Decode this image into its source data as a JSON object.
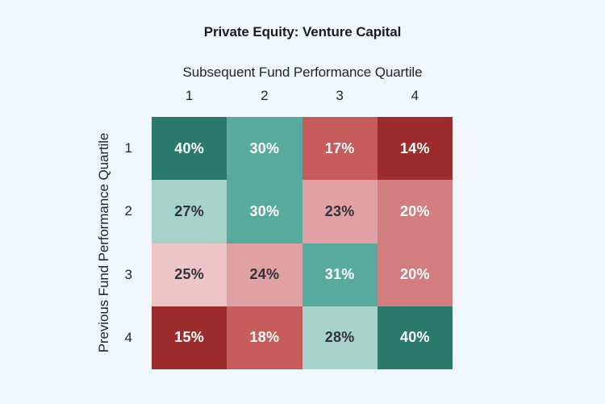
{
  "page": {
    "background_color": "#f0f7fd",
    "title_color": "#1b1b25",
    "label_color": "#23232d"
  },
  "chart_data": {
    "type": "heatmap",
    "title": "Private Equity: Venture Capital",
    "x_axis_label": "Subsequent Fund Performance Quartile",
    "y_axis_label": "Previous Fund Performance Quartile",
    "x_tick_labels": [
      "1",
      "2",
      "3",
      "4"
    ],
    "y_tick_labels": [
      "1",
      "2",
      "3",
      "4"
    ],
    "values_percent": [
      [
        40,
        30,
        17,
        14
      ],
      [
        27,
        30,
        23,
        20
      ],
      [
        25,
        24,
        31,
        20
      ],
      [
        15,
        18,
        28,
        40
      ]
    ],
    "palette": {
      "dark_teal": "#2b7a6b",
      "medium_teal": "#58aa9d",
      "light_teal": "#a6d2ca",
      "pale_pink": "#edc5c7",
      "light_pink": "#dfa1a3",
      "medium_pink": "#d27d7e",
      "medium_red": "#c75c5c",
      "dark_red": "#9d2d2d"
    },
    "cells": [
      [
        {
          "label": "40%",
          "bg": "#2b7a6b",
          "text": "#ffffff"
        },
        {
          "label": "30%",
          "bg": "#58aa9d",
          "text": "#ffffff"
        },
        {
          "label": "17%",
          "bg": "#c75c5c",
          "text": "#ffffff"
        },
        {
          "label": "14%",
          "bg": "#9d2d2d",
          "text": "#ffffff"
        }
      ],
      [
        {
          "label": "27%",
          "bg": "#a6d2ca",
          "text": "#32323c"
        },
        {
          "label": "30%",
          "bg": "#58aa9d",
          "text": "#ffffff"
        },
        {
          "label": "23%",
          "bg": "#dfa1a3",
          "text": "#32323c"
        },
        {
          "label": "20%",
          "bg": "#d27d7e",
          "text": "#ffffff"
        }
      ],
      [
        {
          "label": "25%",
          "bg": "#edc5c7",
          "text": "#32323c"
        },
        {
          "label": "24%",
          "bg": "#dfa1a3",
          "text": "#32323c"
        },
        {
          "label": "31%",
          "bg": "#58aa9d",
          "text": "#ffffff"
        },
        {
          "label": "20%",
          "bg": "#d27d7e",
          "text": "#ffffff"
        }
      ],
      [
        {
          "label": "15%",
          "bg": "#9d2d2d",
          "text": "#ffffff"
        },
        {
          "label": "18%",
          "bg": "#c75c5c",
          "text": "#ffffff"
        },
        {
          "label": "28%",
          "bg": "#a6d2ca",
          "text": "#32323c"
        },
        {
          "label": "40%",
          "bg": "#2b7a6b",
          "text": "#ffffff"
        }
      ]
    ],
    "layout": {
      "grid_on": false,
      "legend": "none"
    }
  }
}
